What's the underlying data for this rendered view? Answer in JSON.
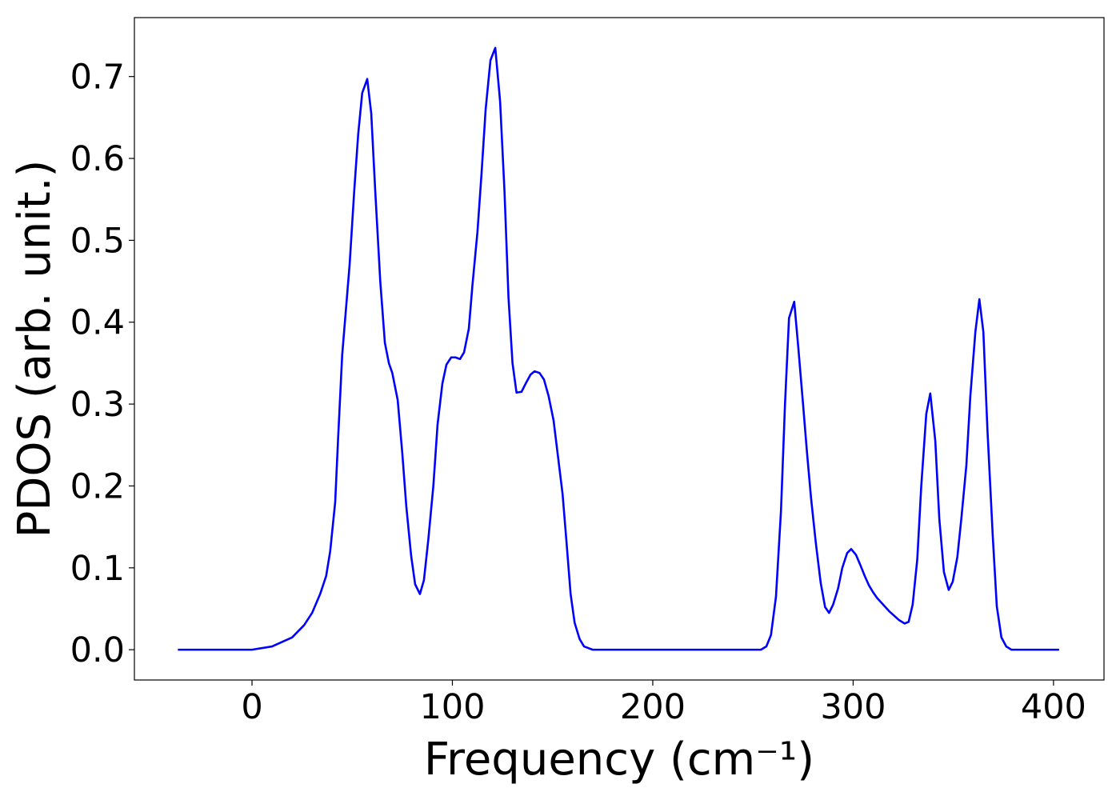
{
  "chart_data": {
    "type": "line",
    "x_label": "Frequency (cm⁻¹)",
    "y_label": "PDOS (arb. unit.)",
    "x": [
      -37,
      0,
      10,
      20,
      26,
      30,
      34,
      37,
      39,
      41.5,
      43,
      45,
      48.7,
      51,
      53,
      55,
      57.5,
      59.5,
      61.5,
      64,
      66.3,
      68.3,
      70,
      72.7,
      75,
      77,
      79.4,
      81.4,
      83.8,
      85.8,
      88,
      90.5,
      92.6,
      95,
      97,
      99.4,
      101.5,
      103.8,
      105.8,
      108.2,
      110,
      112.5,
      114.5,
      116.6,
      119,
      121.4,
      123.8,
      126,
      128,
      130,
      132,
      134.5,
      137,
      139,
      141,
      143.5,
      145.7,
      148,
      150.5,
      152.5,
      155,
      157,
      159,
      161,
      163.5,
      165.7,
      170,
      254,
      256.7,
      259,
      261.5,
      264,
      266,
      268,
      270.6,
      272.6,
      275,
      277,
      279,
      281.4,
      283.8,
      286,
      288,
      290,
      292.5,
      294.6,
      297,
      299,
      301.4,
      303.5,
      305.8,
      307.8,
      310,
      312,
      318,
      323,
      325.7,
      327.7,
      329.7,
      332,
      334,
      336.5,
      338.5,
      341,
      343,
      345.3,
      347.7,
      349.7,
      352,
      354,
      356.5,
      358.5,
      361,
      363,
      365,
      367,
      369.7,
      371.7,
      374,
      376.4,
      379,
      402.8
    ],
    "series": [
      {
        "name": "PDOS",
        "color": "#0000ff",
        "values": [
          0,
          0,
          0.004,
          0.015,
          0.03,
          0.045,
          0.068,
          0.09,
          0.12,
          0.18,
          0.26,
          0.36,
          0.47,
          0.56,
          0.63,
          0.68,
          0.697,
          0.655,
          0.56,
          0.45,
          0.375,
          0.35,
          0.338,
          0.305,
          0.24,
          0.175,
          0.115,
          0.08,
          0.068,
          0.085,
          0.135,
          0.2,
          0.275,
          0.325,
          0.348,
          0.357,
          0.357,
          0.355,
          0.363,
          0.392,
          0.445,
          0.51,
          0.58,
          0.66,
          0.72,
          0.735,
          0.67,
          0.56,
          0.43,
          0.35,
          0.314,
          0.315,
          0.327,
          0.336,
          0.34,
          0.338,
          0.33,
          0.31,
          0.28,
          0.24,
          0.19,
          0.13,
          0.068,
          0.033,
          0.013,
          0.004,
          0,
          0,
          0.004,
          0.018,
          0.065,
          0.17,
          0.3,
          0.405,
          0.425,
          0.37,
          0.3,
          0.24,
          0.185,
          0.13,
          0.082,
          0.052,
          0.045,
          0.055,
          0.075,
          0.1,
          0.118,
          0.123,
          0.116,
          0.104,
          0.09,
          0.079,
          0.07,
          0.063,
          0.047,
          0.036,
          0.032,
          0.034,
          0.055,
          0.11,
          0.2,
          0.288,
          0.313,
          0.255,
          0.16,
          0.095,
          0.073,
          0.083,
          0.113,
          0.16,
          0.225,
          0.31,
          0.388,
          0.428,
          0.388,
          0.27,
          0.138,
          0.053,
          0.015,
          0.004,
          0,
          0
        ]
      }
    ],
    "xlim": [
      -58.7,
      425.2
    ],
    "xticks": [
      0,
      100,
      200,
      300,
      400
    ],
    "ylim": [
      -0.037,
      0.772
    ],
    "yticks": [
      {
        "value": 0,
        "label": "0.0"
      },
      0.1,
      0.2,
      0.3,
      0.4,
      0.5,
      0.6,
      0.7
    ],
    "grid": false
  }
}
